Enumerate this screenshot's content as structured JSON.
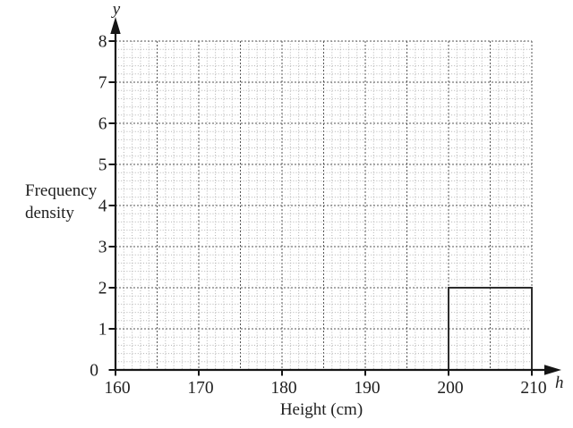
{
  "figure": {
    "y_axis_letter": "y",
    "x_axis_letter": "h",
    "y_axis_title_line1": "Frequency",
    "y_axis_title_line2": "density",
    "x_axis_title": "Height (cm)"
  },
  "chart_data": {
    "type": "bar",
    "subtype": "histogram",
    "title": "",
    "xlabel": "Height (cm)",
    "ylabel": "Frequency density",
    "x_variable": "h",
    "y_variable": "y",
    "xlim": [
      160,
      210
    ],
    "ylim": [
      0,
      8
    ],
    "x_ticks": [
      160,
      170,
      180,
      190,
      200,
      210
    ],
    "y_ticks": [
      0,
      1,
      2,
      3,
      4,
      5,
      6,
      7,
      8
    ],
    "grid": {
      "style": "dotted",
      "minor_step_x": 1,
      "minor_step_y": 0.2,
      "major_every_minor": 5,
      "visible": true
    },
    "bars": [
      {
        "x_start": 200,
        "x_end": 210,
        "frequency_density": 2
      }
    ],
    "legend": null
  },
  "colors": {
    "axis": "#151515",
    "text": "#1f1f1f",
    "grid_minor": "#b2b2b2",
    "grid_major": "#555555",
    "bar_stroke": "#2d2d2d",
    "background": "#ffffff"
  }
}
